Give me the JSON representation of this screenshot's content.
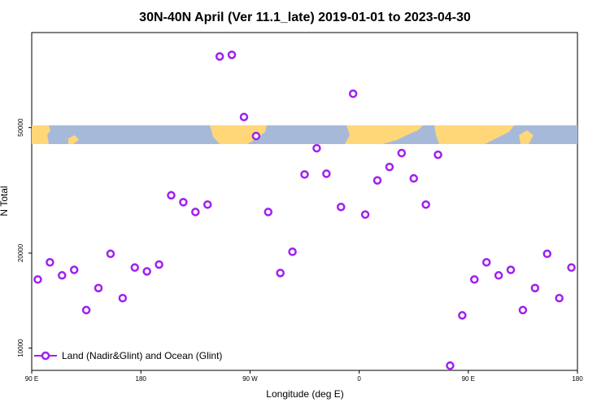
{
  "chart_data": {
    "type": "scatter",
    "title": "30N-40N April (Ver 11.1_late)   2019-01-01 to 2023-04-30",
    "xlabel": "Longitude (deg E)",
    "ylabel": "N Total",
    "y_scale": "log",
    "xlim": [
      90,
      540
    ],
    "ylim": [
      8500,
      100000
    ],
    "x_ticks": [
      {
        "value": 90,
        "label": "90 E"
      },
      {
        "value": 180,
        "label": "180"
      },
      {
        "value": 270,
        "label": "90 W"
      },
      {
        "value": 360,
        "label": "0"
      },
      {
        "value": 450,
        "label": "90 E"
      },
      {
        "value": 540,
        "label": "180"
      }
    ],
    "y_ticks": [
      {
        "value": 10000,
        "label": "10000"
      },
      {
        "value": 20000,
        "label": "20000"
      },
      {
        "value": 50000,
        "label": "50000"
      }
    ],
    "map_band": {
      "description": "world land/ocean strip",
      "land_color": "#ffd778",
      "ocean_color": "#a7b9d9"
    },
    "series": [
      {
        "name": "Land (Nadir&Glint) and Ocean (Glint)",
        "color": "#a020f0",
        "points": [
          [
            95,
            16500
          ],
          [
            105,
            18700
          ],
          [
            115,
            17000
          ],
          [
            125,
            17700
          ],
          [
            135,
            13200
          ],
          [
            145,
            15500
          ],
          [
            155,
            19900
          ],
          [
            165,
            14400
          ],
          [
            175,
            18000
          ],
          [
            185,
            17500
          ],
          [
            195,
            18400
          ],
          [
            205,
            30500
          ],
          [
            215,
            29000
          ],
          [
            225,
            27000
          ],
          [
            235,
            28500
          ],
          [
            245,
            84000
          ],
          [
            255,
            85000
          ],
          [
            265,
            54000
          ],
          [
            275,
            47000
          ],
          [
            285,
            27000
          ],
          [
            295,
            17300
          ],
          [
            305,
            20200
          ],
          [
            315,
            35500
          ],
          [
            325,
            43000
          ],
          [
            333,
            35700
          ],
          [
            345,
            28000
          ],
          [
            355,
            64000
          ],
          [
            365,
            26500
          ],
          [
            375,
            34000
          ],
          [
            385,
            37500
          ],
          [
            395,
            41500
          ],
          [
            405,
            34500
          ],
          [
            415,
            28500
          ],
          [
            425,
            41000
          ],
          [
            435,
            8800
          ],
          [
            445,
            12700
          ],
          [
            455,
            16500
          ],
          [
            465,
            18700
          ],
          [
            475,
            17000
          ],
          [
            485,
            17700
          ],
          [
            495,
            13200
          ],
          [
            505,
            15500
          ],
          [
            515,
            19900
          ],
          [
            525,
            14400
          ],
          [
            535,
            18000
          ]
        ]
      }
    ],
    "legend": {
      "position": "bottom-left",
      "label": "Land (Nadir&Glint) and Ocean (Glint)"
    }
  }
}
